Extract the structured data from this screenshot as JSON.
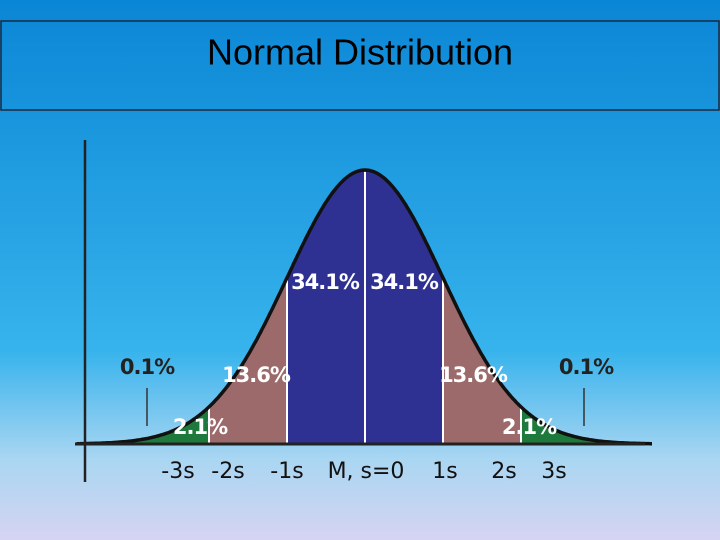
{
  "title": "Normal Distribution",
  "regions": {
    "center_left": "34.1%",
    "center_right": "34.1%",
    "mid_left": "13.6%",
    "mid_right": "13.6%",
    "outer_left": "2.1%",
    "outer_right": "2.1%",
    "tail_left": "0.1%",
    "tail_right": "0.1%"
  },
  "axis_labels": [
    "-3s",
    "-2s",
    "-1s",
    "M, s=0",
    "1s",
    "2s",
    "3s"
  ]
}
